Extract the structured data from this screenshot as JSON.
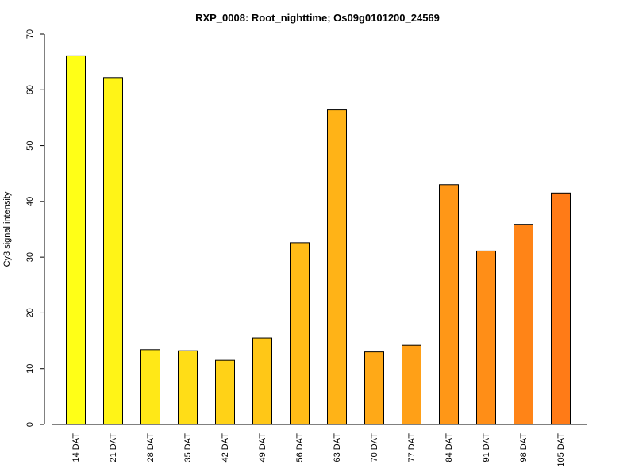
{
  "chart_data": {
    "type": "bar",
    "title": "RXP_0008: Root_nighttime; Os09g0101200_24569",
    "xlabel": "",
    "ylabel": "Cy3 signal intensity",
    "ylim": [
      0,
      70
    ],
    "yticks": [
      0,
      10,
      20,
      30,
      40,
      50,
      60,
      70
    ],
    "grid": false,
    "legend": "none",
    "categories": [
      "14 DAT",
      "21 DAT",
      "28 DAT",
      "35 DAT",
      "42 DAT",
      "49 DAT",
      "56 DAT",
      "63 DAT",
      "70 DAT",
      "77 DAT",
      "84 DAT",
      "91 DAT",
      "98 DAT",
      "105 DAT"
    ],
    "values": [
      66.1,
      62.2,
      13.4,
      13.2,
      11.5,
      15.5,
      32.6,
      56.4,
      13.0,
      14.2,
      43.0,
      31.1,
      35.9,
      41.5
    ],
    "colors": [
      "#FFFF17",
      "#FFF417",
      "#FFE817",
      "#FFDD17",
      "#FFD217",
      "#FFC717",
      "#FFBC17",
      "#FFB317",
      "#FFA917",
      "#FFA017",
      "#FF9717",
      "#FF8E17",
      "#FF8417",
      "#FF7B17"
    ]
  }
}
